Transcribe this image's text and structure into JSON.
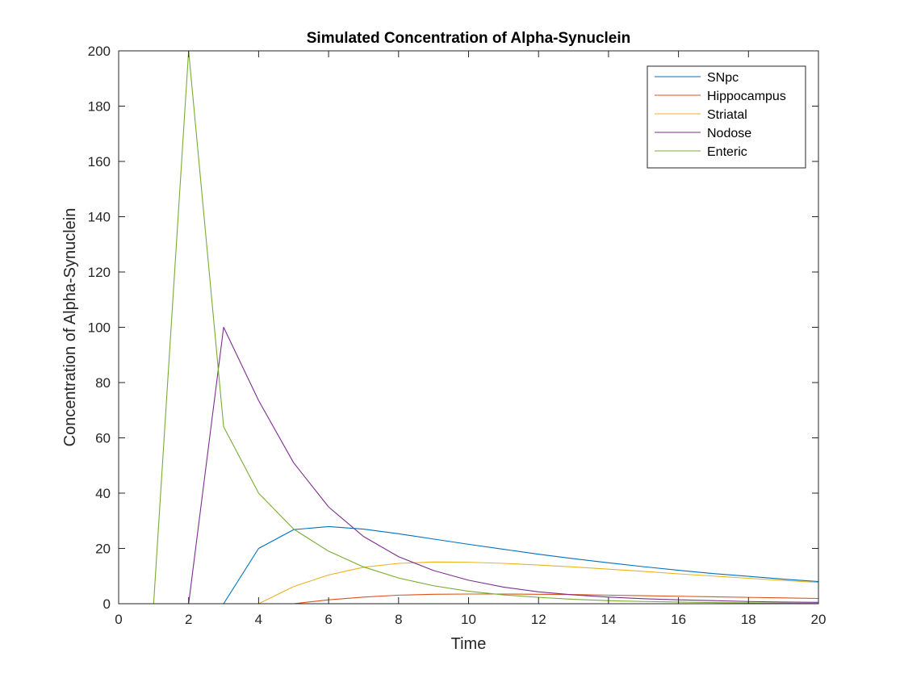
{
  "chart_data": {
    "type": "line",
    "title": "Simulated Concentration of Alpha-Synuclein",
    "xlabel": "Time",
    "ylabel": "Concentration of Alpha-Synuclein",
    "xlim": [
      0,
      20
    ],
    "ylim": [
      0,
      200
    ],
    "xticks": [
      "0",
      "2",
      "4",
      "6",
      "8",
      "10",
      "12",
      "14",
      "16",
      "18",
      "20"
    ],
    "yticks": [
      "0",
      "20",
      "40",
      "60",
      "80",
      "100",
      "120",
      "140",
      "160",
      "180",
      "200"
    ],
    "grid": false,
    "legend_position": "top-right",
    "x": [
      1,
      2,
      3,
      4,
      5,
      6,
      7,
      8,
      9,
      10,
      11,
      12,
      13,
      14,
      15,
      16,
      17,
      18,
      19,
      20
    ],
    "series": [
      {
        "name": "SNpc",
        "color": "#0072BD",
        "values": [
          0,
          0,
          0,
          20,
          26.8,
          27.9,
          27.0,
          25.3,
          23.4,
          21.5,
          19.7,
          17.9,
          16.3,
          14.8,
          13.4,
          12.1,
          10.9,
          9.9,
          8.9,
          8.0
        ]
      },
      {
        "name": "Hippocampus",
        "color": "#D95319",
        "values": [
          0,
          0,
          0,
          0,
          0,
          1.4,
          2.4,
          3.1,
          3.4,
          3.5,
          3.5,
          3.4,
          3.3,
          3.1,
          2.9,
          2.7,
          2.5,
          2.3,
          2.1,
          1.9
        ]
      },
      {
        "name": "Striatal",
        "color": "#EDB120",
        "values": [
          0,
          0,
          0,
          0,
          6.2,
          10.4,
          13.2,
          14.6,
          15.1,
          15.0,
          14.6,
          14.0,
          13.3,
          12.5,
          11.7,
          10.8,
          10.0,
          9.2,
          8.4,
          7.7
        ]
      },
      {
        "name": "Nodose",
        "color": "#7E2F8E",
        "values": [
          0,
          0,
          100,
          73.5,
          51.0,
          35.0,
          24.3,
          17.0,
          12.0,
          8.5,
          6.0,
          4.3,
          3.2,
          2.4,
          1.8,
          1.4,
          1.1,
          0.8,
          0.6,
          0.5
        ]
      },
      {
        "name": "Enteric",
        "color": "#77AC30",
        "values": [
          0,
          200,
          64.0,
          40.0,
          27.0,
          19.0,
          13.3,
          9.3,
          6.5,
          4.5,
          3.2,
          2.3,
          1.6,
          1.1,
          0.8,
          0.6,
          0.4,
          0.3,
          0.2,
          0.1
        ]
      }
    ]
  }
}
